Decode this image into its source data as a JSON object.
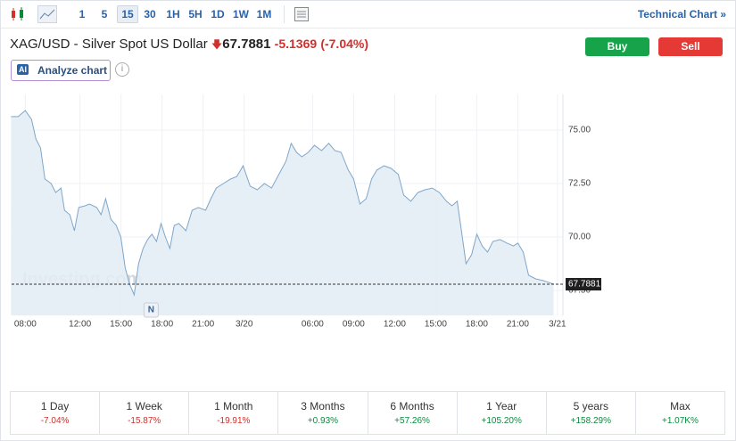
{
  "toolbar": {
    "intervals": [
      "1",
      "5",
      "15",
      "30",
      "1H",
      "5H",
      "1D",
      "1W",
      "1M"
    ],
    "active_interval": 2,
    "link": "Technical Chart »"
  },
  "header": {
    "title": "XAG/USD - Silver Spot US Dollar",
    "price": "67.7881",
    "change": "-5.1369",
    "change_pct": "(-7.04%)",
    "buy": "Buy",
    "sell": "Sell",
    "ai_badge": "AI",
    "analyze": "Analyze chart",
    "info": "i"
  },
  "chart_data": {
    "type": "area",
    "color": "#7fa6c9",
    "fill": "#e3ecf4",
    "x": [
      -1.04,
      -0.52,
      0,
      0.46,
      0.78,
      1.11,
      1.44,
      1.89,
      2.22,
      2.61,
      2.87,
      3.26,
      3.59,
      3.91,
      4.37,
      4.7,
      5.22,
      5.54,
      5.87,
      6.26,
      6.65,
      6.98,
      7.31,
      7.63,
      7.96,
      8.28,
      8.61,
      8.94,
      9.26,
      9.59,
      9.92,
      10.24,
      10.57,
      10.89,
      11.22,
      11.74,
      12.2,
      12.65,
      13.18,
      13.57,
      13.96,
      14.48,
      15,
      15.46,
      15.92,
      16.44,
      16.96,
      17.48,
      18,
      18.53,
      19.05,
      19.44,
      19.83,
      20.22,
      20.68,
      21.14,
      21.66,
      22.18,
      22.64,
      23.09,
      23.61,
      24,
      24.46,
      24.92,
      25.31,
      25.7,
      26.22,
      26.75,
      27.27,
      27.66,
      28.18,
      28.7,
      29.22,
      29.75,
      30.27,
      30.79,
      31.18,
      31.57,
      31.9,
      32.22,
      32.62,
      33.01,
      33.4,
      33.79,
      34.18,
      34.7,
      35.22,
      35.68,
      36.01,
      36.4,
      36.79,
      37.31,
      37.84,
      38.23,
      38.62
    ],
    "values": [
      75.63,
      75.63,
      75.92,
      75.5,
      74.58,
      74.17,
      72.71,
      72.5,
      72.08,
      72.29,
      71.25,
      71.04,
      70.29,
      71.38,
      71.46,
      71.54,
      71.38,
      71.04,
      71.79,
      70.83,
      70.54,
      70,
      68.54,
      67.79,
      67.29,
      68.75,
      69.46,
      69.88,
      70.13,
      69.79,
      70.63,
      70,
      69.46,
      70.54,
      70.63,
      70.29,
      71.25,
      71.38,
      71.25,
      71.79,
      72.29,
      72.5,
      72.71,
      72.83,
      73.33,
      72.38,
      72.21,
      72.5,
      72.29,
      72.92,
      73.54,
      74.38,
      73.96,
      73.75,
      73.96,
      74.29,
      74.04,
      74.38,
      74.04,
      73.96,
      73.13,
      72.71,
      71.54,
      71.79,
      72.71,
      73.13,
      73.33,
      73.21,
      72.92,
      71.96,
      71.67,
      72.08,
      72.21,
      72.29,
      72.08,
      71.67,
      71.46,
      71.67,
      70.21,
      68.75,
      69.17,
      70.13,
      69.58,
      69.29,
      69.79,
      69.88,
      69.71,
      69.58,
      69.71,
      69.29,
      68.21,
      68.04,
      67.96,
      67.88,
      67.79
    ],
    "xlim": [
      -1,
      39.3
    ],
    "ylim": [
      66.33,
      76.67
    ],
    "xticks": [
      {
        "value": 0,
        "label": "08:00"
      },
      {
        "value": 4,
        "label": "12:00"
      },
      {
        "value": 7,
        "label": "15:00"
      },
      {
        "value": 10,
        "label": "18:00"
      },
      {
        "value": 13,
        "label": "21:00"
      },
      {
        "value": 16,
        "label": "3/20"
      },
      {
        "value": 21,
        "label": "06:00"
      },
      {
        "value": 24,
        "label": "09:00"
      },
      {
        "value": 27,
        "label": "12:00"
      },
      {
        "value": 30,
        "label": "15:00"
      },
      {
        "value": 33,
        "label": "18:00"
      },
      {
        "value": 36,
        "label": "21:00"
      },
      {
        "value": 38.9,
        "label": "3/21"
      }
    ],
    "yticks": [
      {
        "value": 67.5,
        "label": "67.50"
      },
      {
        "value": 70,
        "label": "70.00"
      },
      {
        "value": 72.5,
        "label": "72.50"
      },
      {
        "value": 75,
        "label": "75.00"
      }
    ],
    "grid": true,
    "last_price": 67.7881,
    "watermark": "Investing.com",
    "news_marker": {
      "x": 9.2,
      "label": "N"
    }
  },
  "performance": [
    {
      "period": "1 Day",
      "change": "-7.04%",
      "color": "#d0312d"
    },
    {
      "period": "1 Week",
      "change": "-15.87%",
      "color": "#d0312d"
    },
    {
      "period": "1 Month",
      "change": "-19.91%",
      "color": "#d0312d"
    },
    {
      "period": "3 Months",
      "change": "+0.93%",
      "color": "#0b8a3e"
    },
    {
      "period": "6 Months",
      "change": "+57.26%",
      "color": "#0b8a3e"
    },
    {
      "period": "1 Year",
      "change": "+105.20%",
      "color": "#0b8a3e"
    },
    {
      "period": "5 years",
      "change": "+158.29%",
      "color": "#0b8a3e"
    },
    {
      "period": "Max",
      "change": "+1.07K%",
      "color": "#0b8a3e"
    }
  ]
}
